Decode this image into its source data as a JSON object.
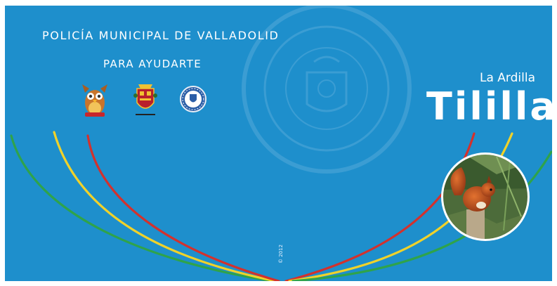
{
  "cover": {
    "background_color": "#1e8fcc",
    "heading": "POLICÍA MUNICIPAL DE VALLADOLID",
    "subheading": "PARA AYUDARTE",
    "title_small": "La Ardilla",
    "title_large": "Tililla",
    "year_mark": "© 2012",
    "logos": [
      "owl-mascot-icon",
      "valladolid-coat-of-arms-icon",
      "police-badge-icon"
    ],
    "ribbon_colors": {
      "red": "#d3312d",
      "yellow": "#f0d22a",
      "green": "#2fa34a"
    }
  }
}
